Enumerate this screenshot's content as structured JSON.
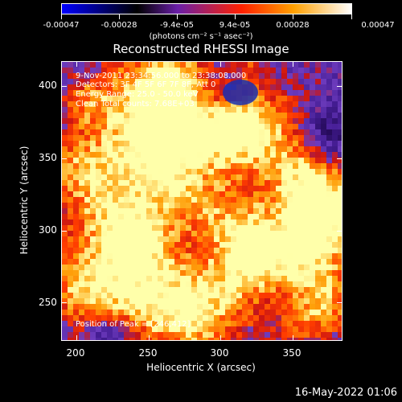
{
  "colorbar": {
    "labels": [
      "-0.00047",
      "-0.00028",
      "-9.4e-05",
      "9.4e-05",
      "0.00028",
      "0.00047"
    ],
    "units": "(photons cm⁻² s⁻¹ asec⁻²)",
    "colors": [
      "#0000ff",
      "#000000",
      "#6a1fa8",
      "#ff2000",
      "#ffa000",
      "#ffffff"
    ]
  },
  "title": "Reconstructed RHESSI Image",
  "info": {
    "time": "9-Nov-2011 23:34:56.000 to 23:38:08.000",
    "detectors": "Detectors: 3F 4F 5F 6F 7F 8F, Att 0",
    "energy": "Energy Range: 25.0 - 50.0 keV",
    "clean": "Clean     Total counts: 7.68E+03",
    "peak": "Position of Peak = [246,412]"
  },
  "chart_data": {
    "type": "heatmap",
    "title": "Reconstructed RHESSI Image",
    "xlabel": "Heliocentric X (arcsec)",
    "ylabel": "Heliocentric Y (arcsec)",
    "xlim": [
      190,
      385
    ],
    "ylim": [
      223,
      417
    ],
    "xticks": [
      200,
      250,
      300,
      350
    ],
    "yticks": [
      250,
      300,
      350,
      400
    ],
    "value_range": [
      -0.00047,
      0.00047
    ],
    "peak_position": [
      246,
      412
    ]
  },
  "axes": {
    "xlabel": "Heliocentric X (arcsec)",
    "ylabel": "Heliocentric Y (arcsec)",
    "xticks": [
      "200",
      "250",
      "300",
      "350"
    ],
    "yticks": [
      "250",
      "300",
      "350",
      "400"
    ]
  },
  "datestamp": "16-May-2022 01:06"
}
